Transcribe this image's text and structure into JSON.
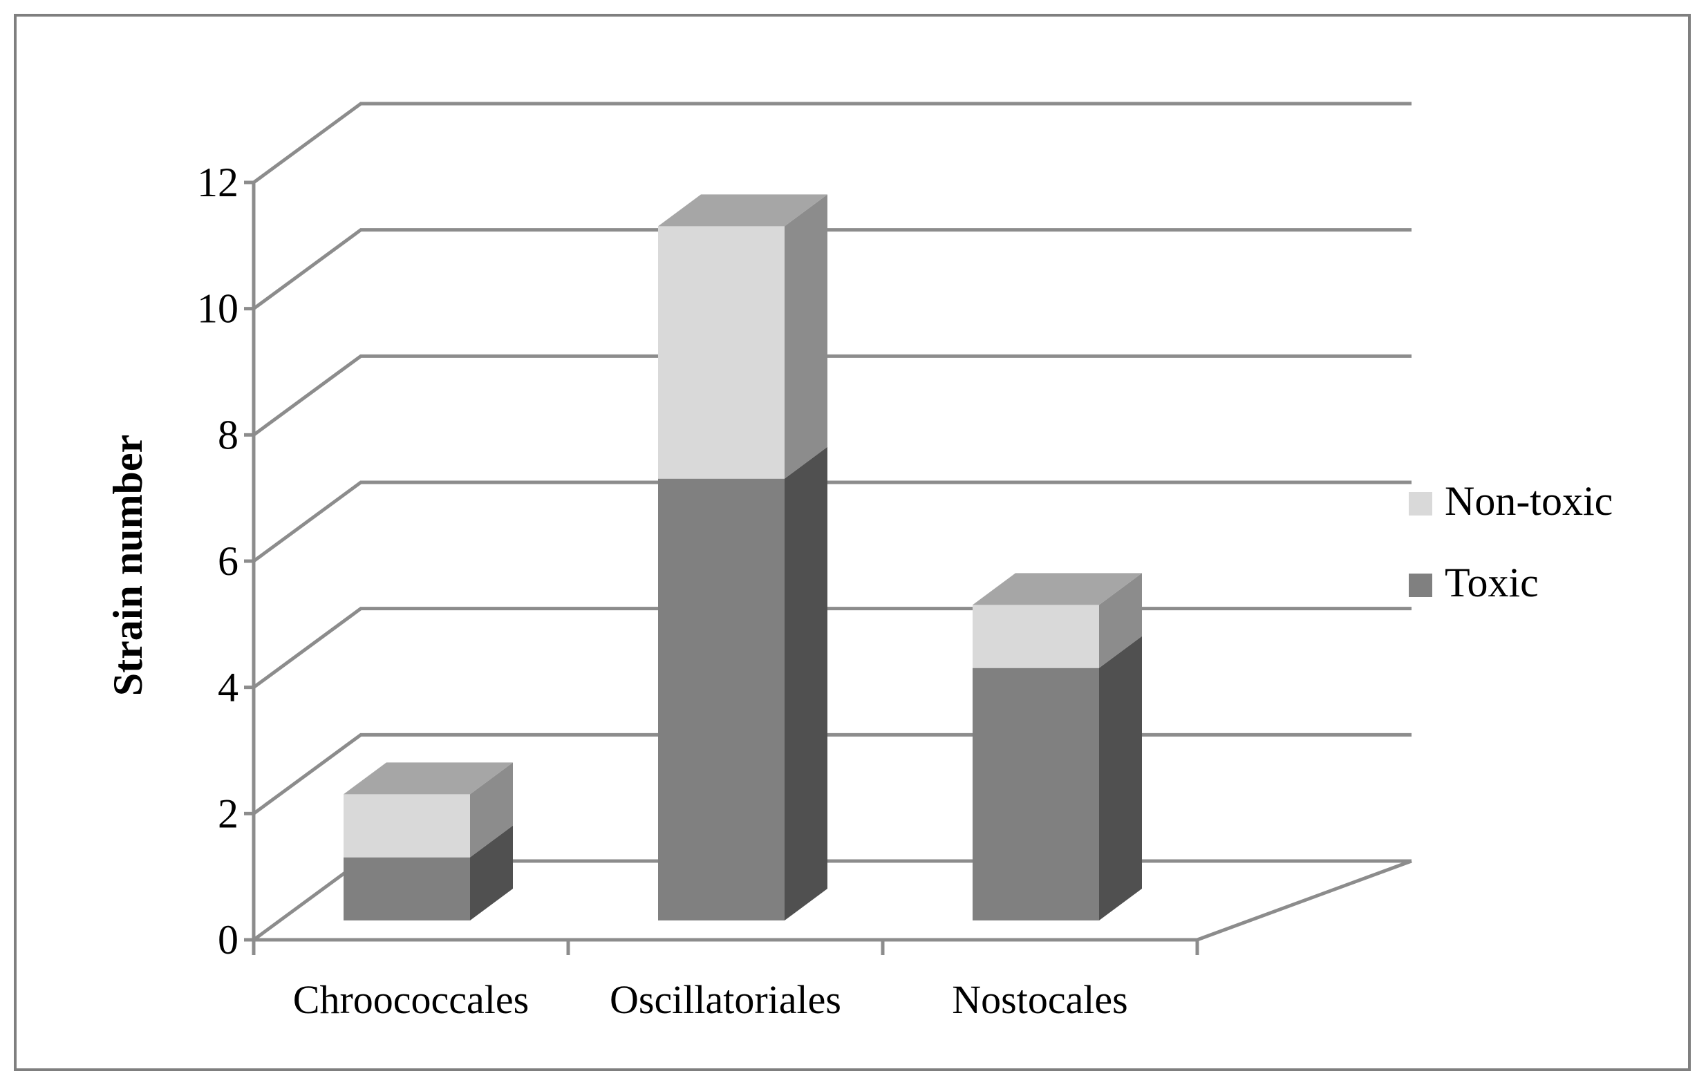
{
  "chart_data": {
    "type": "bar",
    "stacked": true,
    "three_d": true,
    "categories": [
      "Chroococcales",
      "Oscillatoriales",
      "Nostocales"
    ],
    "series": [
      {
        "name": "Toxic",
        "values": [
          1,
          7,
          4
        ],
        "color": "#808080"
      },
      {
        "name": "Non-toxic",
        "values": [
          1,
          4,
          1
        ],
        "color": "#d9d9d9"
      }
    ],
    "ylabel": "Strain number",
    "xlabel": "",
    "ylim": [
      0,
      12
    ],
    "yticks": [
      "0",
      "2",
      "4",
      "6",
      "8",
      "10",
      "12"
    ],
    "grid": true,
    "legend_position": "right",
    "legend_order": [
      "Non-toxic",
      "Toxic"
    ]
  }
}
